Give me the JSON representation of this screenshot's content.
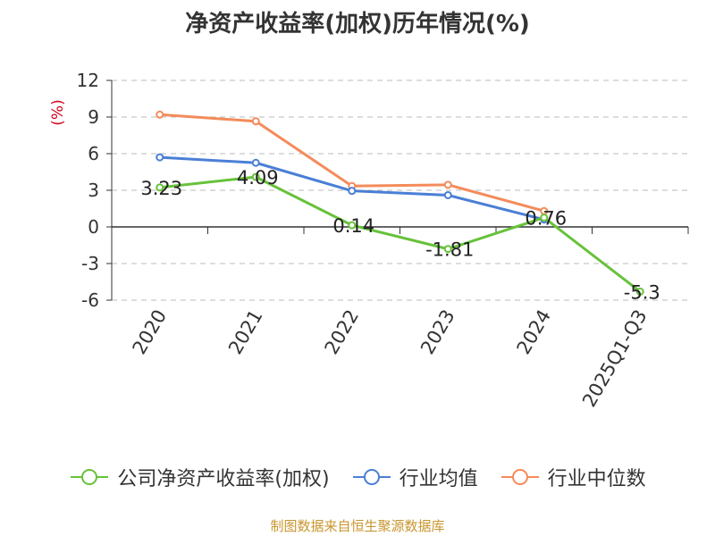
{
  "chart_data": {
    "type": "line",
    "title": "净资产收益率(加权)历年情况(%)",
    "ylabel": "(%)",
    "xlabel": "",
    "ylim": [
      -6,
      12
    ],
    "yticks": [
      12,
      9,
      6,
      3,
      0,
      -3,
      -6
    ],
    "categories": [
      "2020",
      "2021",
      "2022",
      "2023",
      "2024",
      "2025Q1-Q3"
    ],
    "grid": true,
    "legend_position": "bottom",
    "series": [
      {
        "name": "公司净资产收益率(加权)",
        "color": "#67c23a",
        "values": [
          3.23,
          4.09,
          0.14,
          -1.81,
          0.76,
          -5.3
        ],
        "labels": [
          "3.23",
          "4.09",
          "0.14",
          "-1.81",
          "0.76",
          "-5.3"
        ]
      },
      {
        "name": "行业均值",
        "color": "#4a7fd6",
        "values": [
          5.7,
          5.25,
          2.95,
          2.6,
          0.6,
          null
        ]
      },
      {
        "name": "行业中位数",
        "color": "#f48b5a",
        "values": [
          9.2,
          8.65,
          3.35,
          3.45,
          1.3,
          null
        ]
      }
    ]
  },
  "footer": "制图数据来自恒生聚源数据库"
}
